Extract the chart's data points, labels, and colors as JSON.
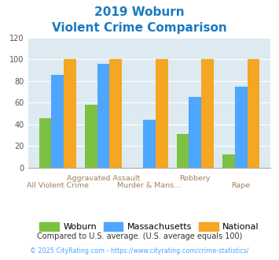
{
  "title_line1": "2019 Woburn",
  "title_line2": "Violent Crime Comparison",
  "categories": [
    "All Violent Crime",
    "Aggravated Assault",
    "Murder & Mans...",
    "Robbery",
    "Rape"
  ],
  "woburn": [
    46,
    58,
    0,
    31,
    12
  ],
  "massachusetts": [
    86,
    96,
    44,
    65,
    75
  ],
  "national": [
    100,
    100,
    100,
    100,
    100
  ],
  "woburn_color": "#7dc142",
  "massachusetts_color": "#4da6ff",
  "national_color": "#f5a623",
  "ylim": [
    0,
    120
  ],
  "yticks": [
    0,
    20,
    40,
    60,
    80,
    100,
    120
  ],
  "background_color": "#deeaf1",
  "title_color": "#1a7abf",
  "xlabel_top_color": "#a08060",
  "xlabel_bot_color": "#a08060",
  "footnote1": "Compared to U.S. average. (U.S. average equals 100)",
  "footnote2": "© 2025 CityRating.com - https://www.cityrating.com/crime-statistics/",
  "footnote1_color": "#333333",
  "footnote2_color": "#4da6ff"
}
